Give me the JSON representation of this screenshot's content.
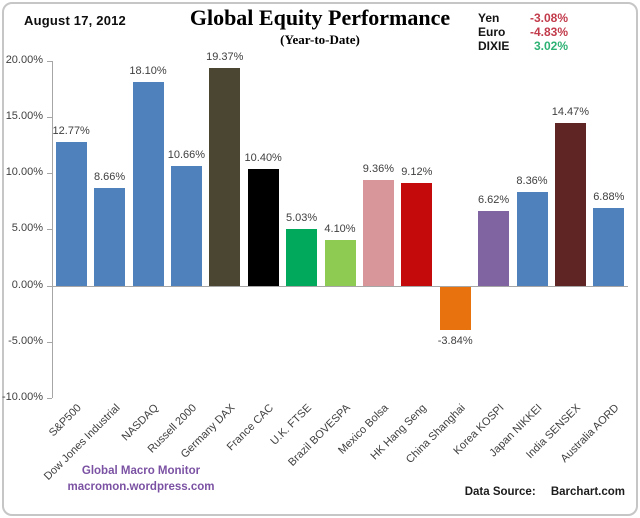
{
  "header": {
    "date": "August 17, 2012",
    "title": "Global Equity Performance",
    "subtitle": "(Year-to-Date)"
  },
  "currency_panel": {
    "rows": [
      {
        "label": "Yen",
        "value": "-3.08%",
        "color": "#c23b4b"
      },
      {
        "label": "Euro",
        "value": "-4.83%",
        "color": "#c23b4b"
      },
      {
        "label": "DIXIE",
        "value": "3.02%",
        "color": "#2eb274"
      }
    ]
  },
  "chart_data": {
    "type": "bar",
    "title": "Global Equity Performance",
    "subtitle": "(Year-to-Date)",
    "categories": [
      "S&P500",
      "Dow Jones Industrial",
      "NASDAQ",
      "Russell 2000",
      "Germany DAX",
      "France CAC",
      "U.K. FTSE",
      "Brazil BOVESPA",
      "Mexico Bolsa",
      "HK Hang Seng",
      "China Shanghai",
      "Korea KOSPI",
      "Japan NIKKEI",
      "India SENSEX",
      "Australia AORD"
    ],
    "values": [
      12.77,
      8.66,
      18.1,
      10.66,
      19.37,
      10.4,
      5.03,
      4.1,
      9.36,
      9.12,
      -3.84,
      6.62,
      8.36,
      14.47,
      6.88
    ],
    "value_labels": [
      "12.77%",
      "8.66%",
      "18.10%",
      "10.66%",
      "19.37%",
      "10.40%",
      "5.03%",
      "4.10%",
      "9.36%",
      "9.12%",
      "-3.84%",
      "6.62%",
      "8.36%",
      "14.47%",
      "6.88%"
    ],
    "bar_colors": [
      "#4f81bd",
      "#4f81bd",
      "#4f81bd",
      "#4f81bd",
      "#4a4631",
      "#000000",
      "#00a95c",
      "#8ecb52",
      "#d9969a",
      "#c40a0a",
      "#e8730e",
      "#8064a2",
      "#4f81bd",
      "#5f2424",
      "#4f81bd"
    ],
    "xlabel": "",
    "ylabel": "",
    "ylim": [
      -10,
      20
    ],
    "yticks": [
      {
        "value": 20,
        "label": "20.00%"
      },
      {
        "value": 15,
        "label": "15.00%"
      },
      {
        "value": 10,
        "label": "10.00%"
      },
      {
        "value": 5,
        "label": "5.00%"
      },
      {
        "value": 0,
        "label": "0.00%"
      },
      {
        "value": -5,
        "label": "-5.00%"
      },
      {
        "value": -10,
        "label": "-10.00%"
      }
    ],
    "grid": false,
    "legend_position": "none"
  },
  "footer": {
    "brand_line1": "Global Macro Monitor",
    "brand_line2": "macromon.wordpress.com",
    "data_source_label": "Data Source:",
    "data_source_value": "Barchart.com"
  },
  "colors": {
    "axis": "#a6a6a6",
    "chart_text": "#404040",
    "negative_red": "#c23b4b",
    "positive_green": "#2eb274",
    "brand_purple": "#7b52a3",
    "frame_border": "#c6c6c6"
  }
}
